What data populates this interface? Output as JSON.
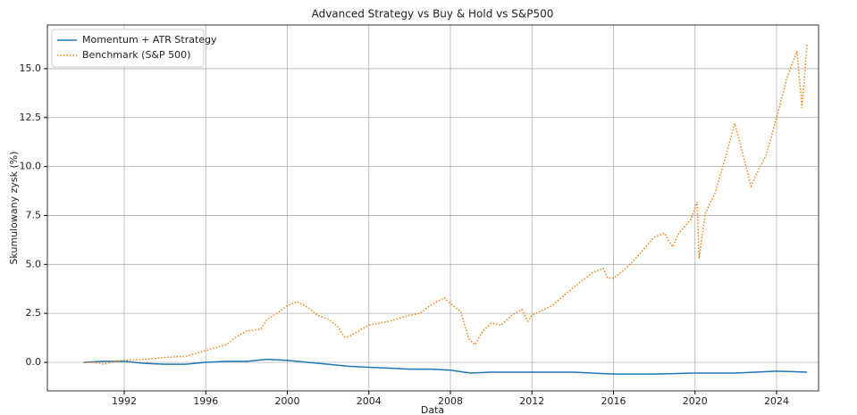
{
  "chart_data": {
    "type": "line",
    "title": "Advanced Strategy vs Buy & Hold vs S&P500",
    "x_label": "Data",
    "y_label": "Skumulowany zysk (%)",
    "xlim": [
      1988.23,
      2026.06
    ],
    "xticks": [
      1992,
      1996,
      2000,
      2004,
      2008,
      2012,
      2016,
      2020,
      2024
    ],
    "ylim": [
      -1.46,
      17.23
    ],
    "yticks": [
      {
        "value": 0,
        "label": "0.0"
      },
      2.5,
      {
        "value": 5,
        "label": "5.0"
      },
      7.5,
      {
        "value": 10,
        "label": "10.0"
      },
      12.5,
      {
        "value": 15,
        "label": "15.0"
      }
    ],
    "grid": true,
    "legend": "upper left",
    "series": [
      {
        "name": "Momentum + ATR Strategy",
        "color": "#1f77b4",
        "linestyle": "solid",
        "x": [
          1990,
          1991,
          1992,
          1993,
          1994,
          1995,
          1996,
          1997,
          1998,
          1999,
          2000,
          2001,
          2002,
          2003,
          2004,
          2005,
          2006,
          2007,
          2008,
          2009,
          2010,
          2012,
          2014,
          2016,
          2018,
          2020,
          2022,
          2024,
          2025.5
        ],
        "values": [
          0.0,
          0.05,
          0.05,
          -0.05,
          -0.1,
          -0.1,
          0.0,
          0.05,
          0.05,
          0.15,
          0.1,
          0.0,
          -0.1,
          -0.2,
          -0.25,
          -0.3,
          -0.35,
          -0.35,
          -0.4,
          -0.55,
          -0.5,
          -0.5,
          -0.5,
          -0.6,
          -0.6,
          -0.55,
          -0.55,
          -0.45,
          -0.5
        ]
      },
      {
        "name": "Benchmark (S&P 500)",
        "color": "#ff7f0e",
        "linestyle": "dotted",
        "x": [
          1990,
          1990.5,
          1991,
          1991.5,
          1992,
          1993,
          1994,
          1995,
          1996,
          1997,
          1997.5,
          1998,
          1998.7,
          1999,
          1999.5,
          2000,
          2000.5,
          2001,
          2001.5,
          2002,
          2002.5,
          2002.8,
          2003,
          2003.5,
          2004,
          2005,
          2006,
          2006.5,
          2007,
          2007.7,
          2008,
          2008.5,
          2008.9,
          2009.2,
          2009.6,
          2010,
          2010.5,
          2011,
          2011.5,
          2011.8,
          2012,
          2013,
          2014,
          2015,
          2015.5,
          2015.7,
          2016,
          2016.5,
          2017,
          2018,
          2018.5,
          2018.9,
          2019.2,
          2019.8,
          2020.1,
          2020.2,
          2020.5,
          2021,
          2021.5,
          2021.95,
          2022.3,
          2022.75,
          2023,
          2023.5,
          2024,
          2024.5,
          2025,
          2025.25,
          2025.5
        ],
        "values": [
          0,
          0.0,
          -0.1,
          0.05,
          0.1,
          0.15,
          0.25,
          0.3,
          0.6,
          0.9,
          1.3,
          1.6,
          1.7,
          2.2,
          2.5,
          2.9,
          3.1,
          2.8,
          2.4,
          2.2,
          1.8,
          1.3,
          1.3,
          1.6,
          1.9,
          2.1,
          2.4,
          2.5,
          2.9,
          3.3,
          3.0,
          2.6,
          1.2,
          0.9,
          1.6,
          2.0,
          1.9,
          2.4,
          2.7,
          2.1,
          2.4,
          2.9,
          3.8,
          4.6,
          4.8,
          4.3,
          4.3,
          4.7,
          5.2,
          6.4,
          6.6,
          5.9,
          6.6,
          7.3,
          8.2,
          5.3,
          7.6,
          8.7,
          10.5,
          12.2,
          10.8,
          9.0,
          9.6,
          10.6,
          12.5,
          14.5,
          15.9,
          13.0,
          16.3
        ]
      }
    ]
  }
}
